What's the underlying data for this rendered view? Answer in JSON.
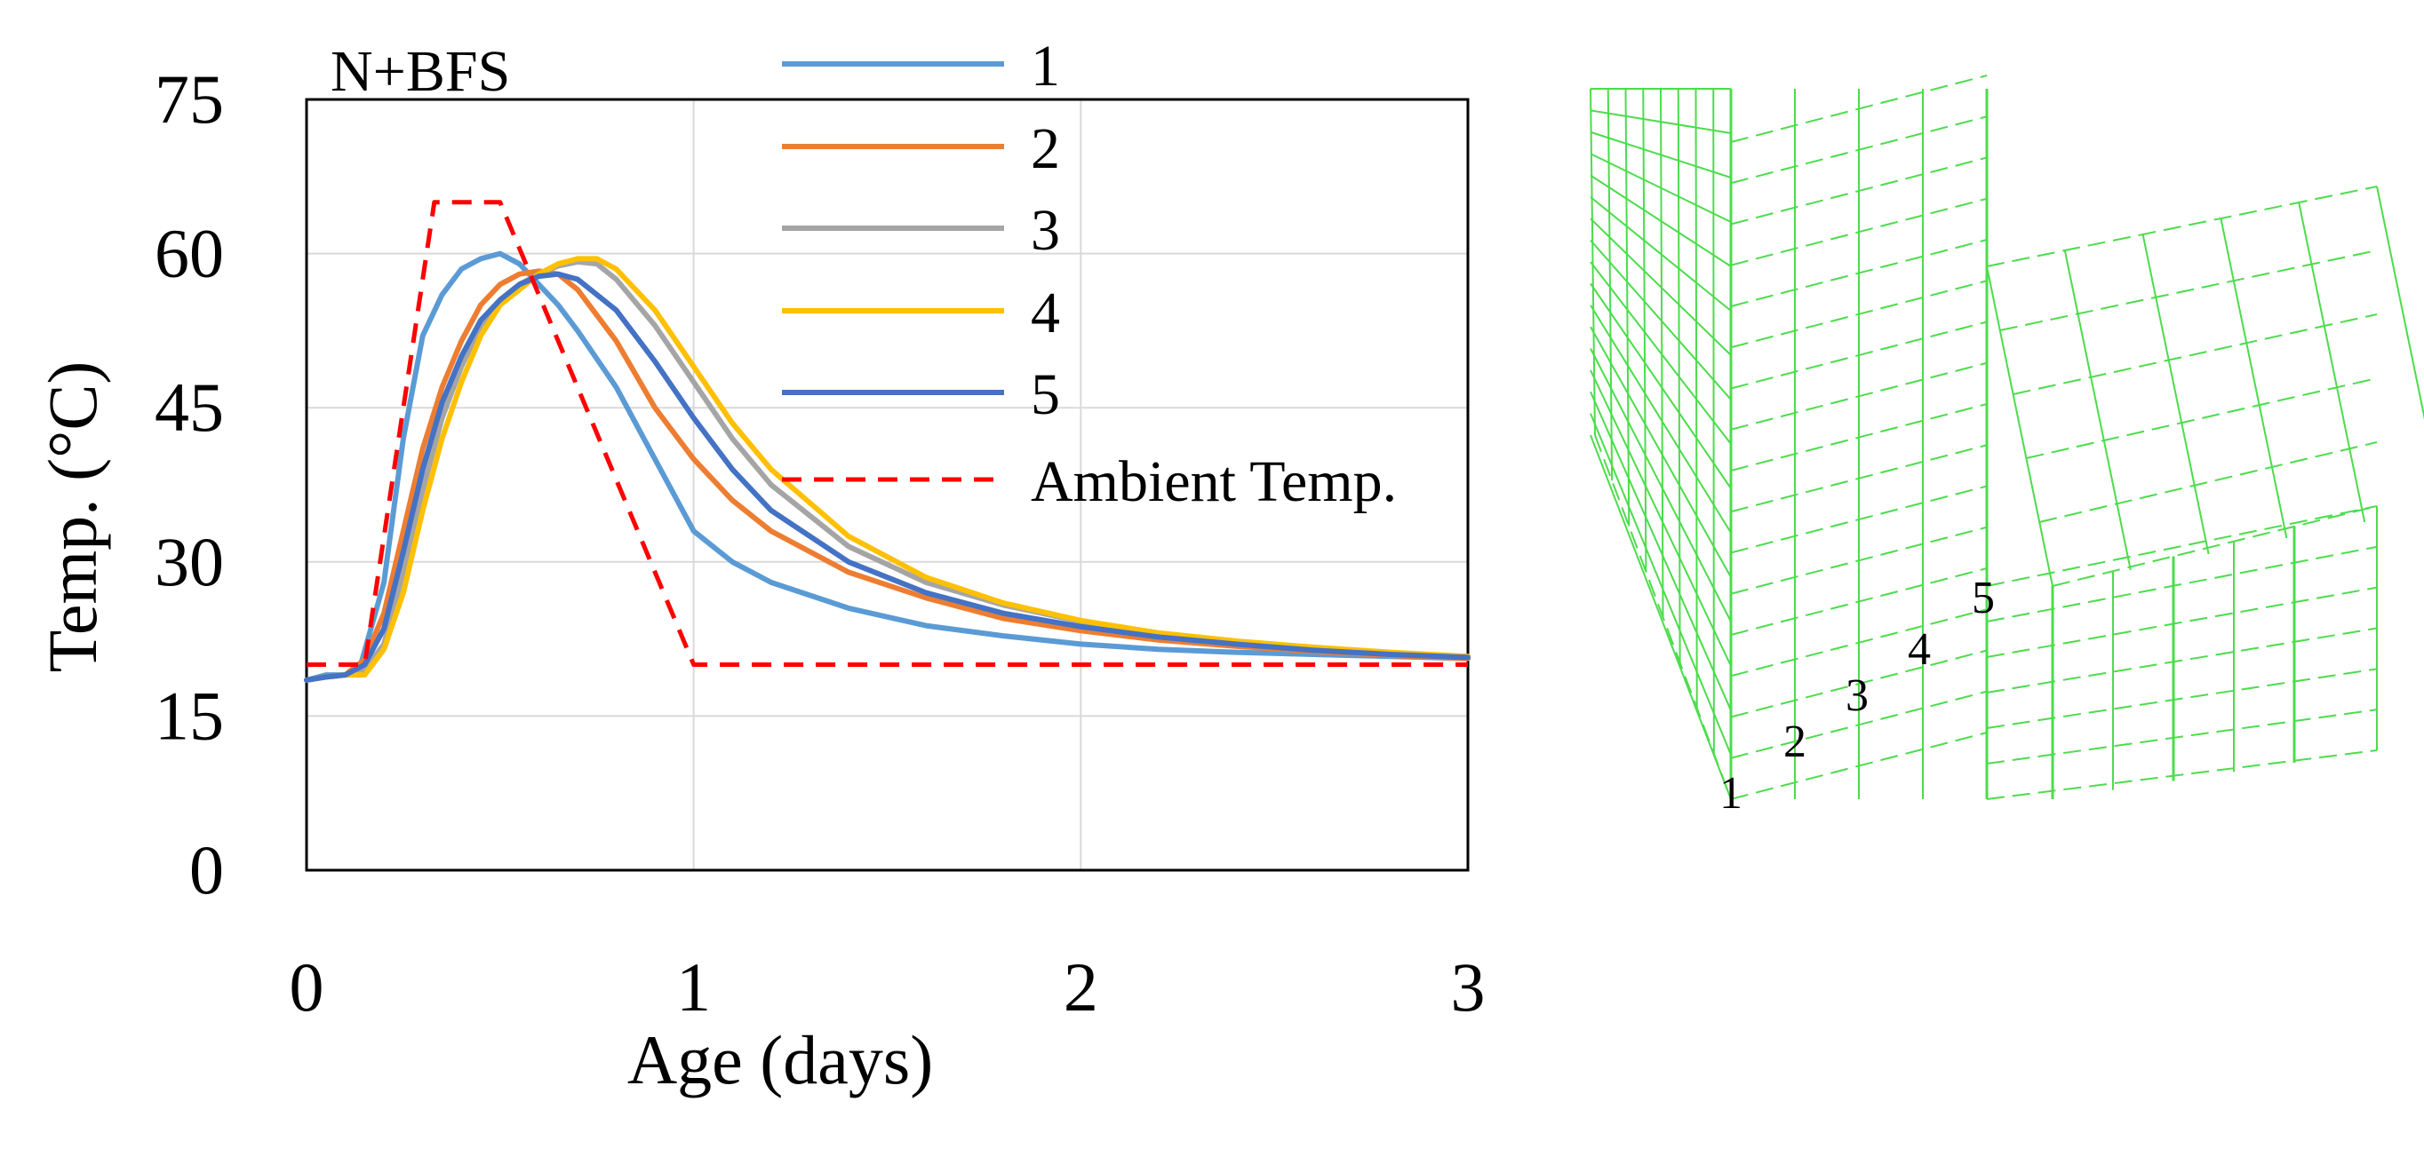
{
  "chart_data": {
    "type": "line",
    "title": "N+BFS",
    "xlabel": "Age (days)",
    "ylabel": "Temp. (°C)",
    "xlim": [
      0,
      3
    ],
    "ylim": [
      0,
      75
    ],
    "xticks": [
      "0",
      "1",
      "2",
      "3"
    ],
    "yticks": [
      "0",
      "15",
      "30",
      "45",
      "60",
      "75"
    ],
    "grid": true,
    "legend_position": "top-right",
    "series": [
      {
        "name": "1",
        "color": "#5b9bd5",
        "dash": "solid",
        "points": [
          [
            0,
            18.5
          ],
          [
            0.05,
            19
          ],
          [
            0.1,
            19
          ],
          [
            0.14,
            20
          ],
          [
            0.2,
            28
          ],
          [
            0.25,
            42
          ],
          [
            0.3,
            52
          ],
          [
            0.35,
            56
          ],
          [
            0.4,
            58.5
          ],
          [
            0.45,
            59.5
          ],
          [
            0.5,
            60
          ],
          [
            0.55,
            59
          ],
          [
            0.6,
            57
          ],
          [
            0.65,
            55
          ],
          [
            0.7,
            52.5
          ],
          [
            0.8,
            47
          ],
          [
            0.9,
            40
          ],
          [
            1.0,
            33
          ],
          [
            1.1,
            30
          ],
          [
            1.2,
            28
          ],
          [
            1.4,
            25.5
          ],
          [
            1.6,
            23.8
          ],
          [
            1.8,
            22.8
          ],
          [
            2.0,
            22
          ],
          [
            2.2,
            21.5
          ],
          [
            2.4,
            21.2
          ],
          [
            2.6,
            21
          ],
          [
            2.8,
            20.8
          ],
          [
            3.0,
            20.6
          ]
        ]
      },
      {
        "name": "2",
        "color": "#ed7d31",
        "dash": "solid",
        "points": [
          [
            0,
            18.5
          ],
          [
            0.05,
            18.8
          ],
          [
            0.1,
            19
          ],
          [
            0.15,
            20.5
          ],
          [
            0.2,
            25
          ],
          [
            0.25,
            33
          ],
          [
            0.3,
            41
          ],
          [
            0.35,
            47
          ],
          [
            0.4,
            51.5
          ],
          [
            0.45,
            55
          ],
          [
            0.5,
            57
          ],
          [
            0.55,
            58
          ],
          [
            0.6,
            58.3
          ],
          [
            0.65,
            58
          ],
          [
            0.7,
            56.5
          ],
          [
            0.8,
            51.5
          ],
          [
            0.9,
            45
          ],
          [
            1.0,
            40
          ],
          [
            1.1,
            36
          ],
          [
            1.2,
            33
          ],
          [
            1.4,
            29
          ],
          [
            1.6,
            26.5
          ],
          [
            1.8,
            24.5
          ],
          [
            2.0,
            23.3
          ],
          [
            2.2,
            22.4
          ],
          [
            2.4,
            21.8
          ],
          [
            2.6,
            21.3
          ],
          [
            2.8,
            20.9
          ],
          [
            3.0,
            20.6
          ]
        ]
      },
      {
        "name": "3",
        "color": "#a5a5a5",
        "dash": "solid",
        "points": [
          [
            0,
            18.5
          ],
          [
            0.05,
            18.8
          ],
          [
            0.1,
            19
          ],
          [
            0.15,
            19.5
          ],
          [
            0.2,
            22
          ],
          [
            0.25,
            29
          ],
          [
            0.3,
            37
          ],
          [
            0.35,
            44
          ],
          [
            0.4,
            49
          ],
          [
            0.45,
            53
          ],
          [
            0.5,
            55.5
          ],
          [
            0.55,
            57
          ],
          [
            0.6,
            58
          ],
          [
            0.65,
            58.8
          ],
          [
            0.7,
            59.2
          ],
          [
            0.75,
            59
          ],
          [
            0.8,
            57.5
          ],
          [
            0.9,
            53
          ],
          [
            1.0,
            47.5
          ],
          [
            1.1,
            42
          ],
          [
            1.2,
            37.5
          ],
          [
            1.4,
            31.5
          ],
          [
            1.6,
            28
          ],
          [
            1.8,
            25.8
          ],
          [
            2.0,
            24.2
          ],
          [
            2.2,
            23
          ],
          [
            2.4,
            22.2
          ],
          [
            2.6,
            21.6
          ],
          [
            2.8,
            21.1
          ],
          [
            3.0,
            20.8
          ]
        ]
      },
      {
        "name": "4",
        "color": "#ffc000",
        "dash": "solid",
        "points": [
          [
            0,
            18.5
          ],
          [
            0.05,
            18.8
          ],
          [
            0.1,
            19
          ],
          [
            0.15,
            19
          ],
          [
            0.2,
            21.5
          ],
          [
            0.25,
            27
          ],
          [
            0.3,
            35
          ],
          [
            0.35,
            42
          ],
          [
            0.4,
            47.5
          ],
          [
            0.45,
            52
          ],
          [
            0.5,
            55
          ],
          [
            0.55,
            56.5
          ],
          [
            0.6,
            58
          ],
          [
            0.65,
            59
          ],
          [
            0.7,
            59.5
          ],
          [
            0.75,
            59.5
          ],
          [
            0.8,
            58.5
          ],
          [
            0.9,
            54.5
          ],
          [
            1.0,
            49
          ],
          [
            1.1,
            43.5
          ],
          [
            1.2,
            39
          ],
          [
            1.4,
            32.5
          ],
          [
            1.6,
            28.5
          ],
          [
            1.8,
            26
          ],
          [
            2.0,
            24.3
          ],
          [
            2.2,
            23.1
          ],
          [
            2.4,
            22.3
          ],
          [
            2.6,
            21.7
          ],
          [
            2.8,
            21.2
          ],
          [
            3.0,
            20.8
          ]
        ]
      },
      {
        "name": "5",
        "color": "#4472c4",
        "dash": "solid",
        "points": [
          [
            0,
            18.5
          ],
          [
            0.05,
            18.8
          ],
          [
            0.1,
            19
          ],
          [
            0.15,
            20
          ],
          [
            0.2,
            23.5
          ],
          [
            0.25,
            31
          ],
          [
            0.3,
            39
          ],
          [
            0.35,
            45.5
          ],
          [
            0.4,
            50
          ],
          [
            0.45,
            53.5
          ],
          [
            0.5,
            55.5
          ],
          [
            0.55,
            57
          ],
          [
            0.6,
            57.8
          ],
          [
            0.65,
            58
          ],
          [
            0.7,
            57.5
          ],
          [
            0.8,
            54.5
          ],
          [
            0.9,
            49.5
          ],
          [
            1.0,
            44
          ],
          [
            1.1,
            39
          ],
          [
            1.2,
            35
          ],
          [
            1.4,
            30
          ],
          [
            1.6,
            27
          ],
          [
            1.8,
            25
          ],
          [
            2.0,
            23.7
          ],
          [
            2.2,
            22.7
          ],
          [
            2.4,
            22
          ],
          [
            2.6,
            21.4
          ],
          [
            2.8,
            21
          ],
          [
            3.0,
            20.7
          ]
        ]
      },
      {
        "name": "Ambient Temp.",
        "color": "#ff0000",
        "dash": "dashed",
        "points": [
          [
            0,
            20
          ],
          [
            0.15,
            20
          ],
          [
            0.33,
            65
          ],
          [
            0.5,
            65
          ],
          [
            1.0,
            20
          ],
          [
            3.0,
            20
          ]
        ]
      }
    ]
  },
  "mesh": {
    "line_color": "#4cdc4c",
    "node_labels": [
      "1",
      "2",
      "3",
      "4",
      "5"
    ]
  }
}
